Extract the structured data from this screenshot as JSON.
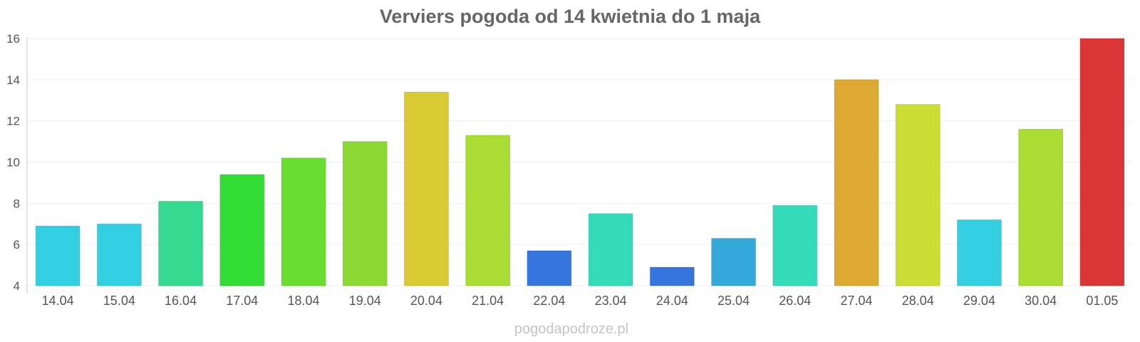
{
  "chart_data": {
    "type": "bar",
    "title": "Verviers pogoda od 14 kwietnia do 1 maja",
    "xlabel": "",
    "ylabel": "",
    "ylim": [
      4,
      16
    ],
    "yticks": [
      4,
      6,
      8,
      10,
      12,
      14,
      16
    ],
    "grid": true,
    "legend": "none",
    "categories": [
      "14.04",
      "15.04",
      "16.04",
      "17.04",
      "18.04",
      "19.04",
      "20.04",
      "21.04",
      "22.04",
      "23.04",
      "24.04",
      "25.04",
      "26.04",
      "27.04",
      "28.04",
      "29.04",
      "30.04",
      "01.05"
    ],
    "values": [
      6.9,
      7.0,
      8.1,
      9.4,
      10.2,
      11.0,
      13.4,
      11.3,
      5.7,
      7.5,
      4.9,
      6.3,
      7.9,
      14.0,
      12.8,
      7.2,
      11.6,
      16.0
    ],
    "colors": [
      "#33cedf",
      "#33cedf",
      "#33d98f",
      "#33dd33",
      "#6add33",
      "#8dd933",
      "#d9c933",
      "#aadd33",
      "#3575dd",
      "#33dbba",
      "#3575dd",
      "#35a9dc",
      "#33dbba",
      "#dcaa33",
      "#ccdd33",
      "#33cedf",
      "#aadd33",
      "#dc3535"
    ]
  },
  "watermark": "pogodapodroze.pl"
}
